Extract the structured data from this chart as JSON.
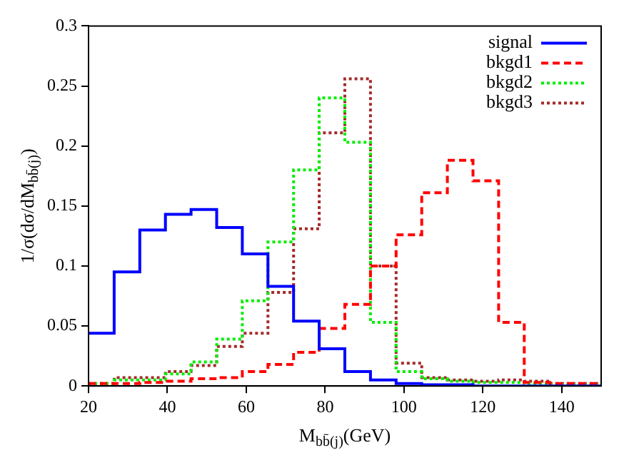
{
  "chart_data": {
    "type": "histogram",
    "xlabel": "M$_{bb̄(j)}$(GeV)",
    "ylabel": "1/σ(dσ/dM$_{bb̄(j)}$)",
    "bins": [
      20,
      26.5,
      33,
      39.5,
      46,
      52.5,
      59,
      65.5,
      72,
      78.5,
      85,
      91.5,
      98,
      104.5,
      111,
      117.5,
      124,
      130.5,
      137,
      143.5,
      150
    ],
    "series": [
      {
        "name": "signal",
        "color": "#0000ff",
        "line_style": "solid",
        "values": [
          0.044,
          0.095,
          0.13,
          0.143,
          0.147,
          0.132,
          0.11,
          0.083,
          0.054,
          0.031,
          0.012,
          0.005,
          0.002,
          0.001,
          0.001,
          0,
          0,
          0,
          0,
          0
        ]
      },
      {
        "name": "bkgd1",
        "color": "#ff0000",
        "line_style": "dashed",
        "values": [
          0.002,
          0.002,
          0.003,
          0.004,
          0.006,
          0.007,
          0.012,
          0.018,
          0.028,
          0.048,
          0.068,
          0.1,
          0.126,
          0.161,
          0.188,
          0.171,
          0.053,
          0.003,
          0.002,
          0.002
        ]
      },
      {
        "name": "bkgd2",
        "color": "#00ee00",
        "line_style": "dotted",
        "values": [
          0.002,
          0.005,
          0.005,
          0.01,
          0.02,
          0.039,
          0.071,
          0.12,
          0.18,
          0.24,
          0.203,
          0.053,
          0.012,
          0.006,
          0.004,
          0.003,
          0.003,
          0.002,
          0.001,
          0.001
        ]
      },
      {
        "name": "bkgd3",
        "color": "#a52a2a",
        "line_style": "dotted",
        "values": [
          0.002,
          0.007,
          0.007,
          0.012,
          0.017,
          0.033,
          0.044,
          0.078,
          0.131,
          0.211,
          0.256,
          0.1,
          0.019,
          0.007,
          0.005,
          0.004,
          0.005,
          0.004,
          0.002,
          0.002
        ]
      }
    ],
    "xlim": [
      20,
      150
    ],
    "xticks": [
      20,
      40,
      60,
      80,
      100,
      120,
      140
    ],
    "ylim": [
      0,
      0.3
    ],
    "yticks": [
      0,
      0.05,
      0.1,
      0.15,
      0.2,
      0.25,
      0.3
    ],
    "grid": false,
    "legend": "top right"
  }
}
